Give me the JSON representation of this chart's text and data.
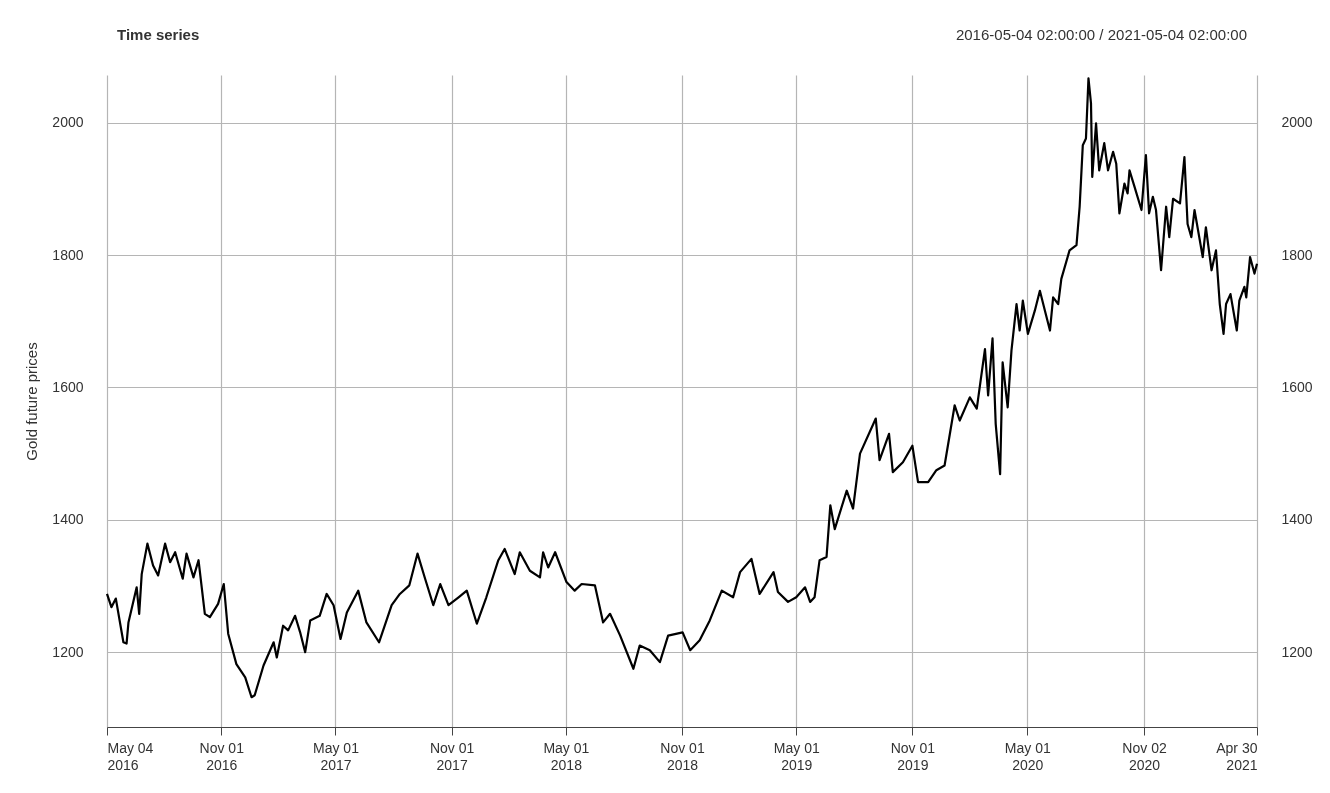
{
  "chart_data": {
    "type": "line",
    "title": "Time series",
    "subtitle": "2016-05-04 02:00:00 / 2021-05-04 02:00:00",
    "ylabel": "Gold future prices",
    "color": "#000000",
    "grid": true,
    "xlim": [
      "2016-05-04",
      "2021-04-30"
    ],
    "xticks": [
      {
        "value": "2016-05-04",
        "label": "May 04\n2016"
      },
      {
        "value": "2016-11-01",
        "label": "Nov 01\n2016"
      },
      {
        "value": "2017-05-01",
        "label": "May 01\n2017"
      },
      {
        "value": "2017-11-01",
        "label": "Nov 01\n2017"
      },
      {
        "value": "2018-05-01",
        "label": "May 01\n2018"
      },
      {
        "value": "2018-11-01",
        "label": "Nov 01\n2018"
      },
      {
        "value": "2019-05-01",
        "label": "May 01\n2019"
      },
      {
        "value": "2019-11-01",
        "label": "Nov 01\n2019"
      },
      {
        "value": "2020-05-01",
        "label": "May 01\n2020"
      },
      {
        "value": "2020-11-02",
        "label": "Nov 02\n2020"
      },
      {
        "value": "2021-04-30",
        "label": "Apr 30\n2021"
      }
    ],
    "ylim": [
      1087,
      2072
    ],
    "yticks": [
      1200,
      1400,
      1600,
      1800,
      2000
    ],
    "y2lim": [
      1087,
      2072
    ],
    "y2ticks": [
      1200,
      1400,
      1600,
      1800,
      2000
    ],
    "x": [
      "2016-05-04",
      "2016-05-11",
      "2016-05-18",
      "2016-05-30",
      "2016-06-04",
      "2016-06-07",
      "2016-06-20",
      "2016-06-24",
      "2016-06-28",
      "2016-07-07",
      "2016-07-16",
      "2016-07-24",
      "2016-08-04",
      "2016-08-12",
      "2016-08-20",
      "2016-09-01",
      "2016-09-07",
      "2016-09-18",
      "2016-09-26",
      "2016-10-06",
      "2016-10-14",
      "2016-10-27",
      "2016-11-05",
      "2016-11-12",
      "2016-11-25",
      "2016-12-09",
      "2016-12-19",
      "2016-12-24",
      "2017-01-07",
      "2017-01-23",
      "2017-01-28",
      "2017-02-07",
      "2017-02-15",
      "2017-02-26",
      "2017-03-06",
      "2017-03-14",
      "2017-03-22",
      "2017-04-06",
      "2017-04-17",
      "2017-04-28",
      "2017-05-09",
      "2017-05-19",
      "2017-06-06",
      "2017-06-19",
      "2017-07-09",
      "2017-07-29",
      "2017-08-11",
      "2017-08-26",
      "2017-09-08",
      "2017-09-20",
      "2017-10-03",
      "2017-10-14",
      "2017-10-27",
      "2017-11-12",
      "2017-11-25",
      "2017-12-11",
      "2017-12-26",
      "2018-01-14",
      "2018-01-24",
      "2018-02-09",
      "2018-02-17",
      "2018-03-05",
      "2018-03-21",
      "2018-03-26",
      "2018-04-03",
      "2018-04-14",
      "2018-05-02",
      "2018-05-15",
      "2018-05-26",
      "2018-06-16",
      "2018-06-29",
      "2018-07-10",
      "2018-07-26",
      "2018-08-16",
      "2018-08-26",
      "2018-09-11",
      "2018-09-27",
      "2018-10-10",
      "2018-11-02",
      "2018-11-14",
      "2018-11-29",
      "2018-12-15",
      "2019-01-03",
      "2019-01-21",
      "2019-02-01",
      "2019-02-19",
      "2019-03-04",
      "2019-03-26",
      "2019-04-02",
      "2019-04-18",
      "2019-05-01",
      "2019-05-15",
      "2019-05-23",
      "2019-05-30",
      "2019-06-07",
      "2019-06-18",
      "2019-06-24",
      "2019-07-01",
      "2019-07-20",
      "2019-07-30",
      "2019-08-10",
      "2019-09-04",
      "2019-09-10",
      "2019-09-25",
      "2019-10-01",
      "2019-10-17",
      "2019-11-01",
      "2019-11-10",
      "2019-11-26",
      "2019-12-09",
      "2019-12-22",
      "2020-01-07",
      "2020-01-15",
      "2020-01-31",
      "2020-02-11",
      "2020-02-24",
      "2020-02-29",
      "2020-03-07",
      "2020-03-12",
      "2020-03-19",
      "2020-03-23",
      "2020-03-31",
      "2020-04-06",
      "2020-04-14",
      "2020-04-19",
      "2020-04-24",
      "2020-05-02",
      "2020-05-13",
      "2020-05-21",
      "2020-05-29",
      "2020-06-06",
      "2020-06-11",
      "2020-06-19",
      "2020-06-24",
      "2020-07-07",
      "2020-07-18",
      "2020-07-23",
      "2020-07-28",
      "2020-08-02",
      "2020-08-06",
      "2020-08-10",
      "2020-08-12",
      "2020-08-18",
      "2020-08-23",
      "2020-08-31",
      "2020-09-06",
      "2020-09-14",
      "2020-09-19",
      "2020-09-24",
      "2020-10-02",
      "2020-10-07",
      "2020-10-10",
      "2020-10-18",
      "2020-10-29",
      "2020-11-05",
      "2020-11-10",
      "2020-11-16",
      "2020-11-21",
      "2020-11-29",
      "2020-12-07",
      "2020-12-12",
      "2020-12-18",
      "2020-12-29",
      "2021-01-05",
      "2021-01-10",
      "2021-01-16",
      "2021-01-21",
      "2021-02-03",
      "2021-02-08",
      "2021-02-17",
      "2021-02-24",
      "2021-03-02",
      "2021-03-08",
      "2021-03-12",
      "2021-03-19",
      "2021-03-29",
      "2021-04-02",
      "2021-04-10",
      "2021-04-13",
      "2021-04-19",
      "2021-04-26",
      "2021-04-30"
    ],
    "values": [
      1288,
      1268,
      1281,
      1215,
      1213,
      1245,
      1298,
      1258,
      1318,
      1364,
      1331,
      1316,
      1364,
      1336,
      1351,
      1311,
      1349,
      1313,
      1339,
      1258,
      1253,
      1273,
      1303,
      1228,
      1182,
      1162,
      1132,
      1135,
      1180,
      1215,
      1192,
      1240,
      1233,
      1255,
      1230,
      1200,
      1248,
      1255,
      1288,
      1271,
      1220,
      1260,
      1293,
      1245,
      1215,
      1271,
      1288,
      1301,
      1349,
      1311,
      1271,
      1303,
      1271,
      1283,
      1293,
      1243,
      1283,
      1339,
      1356,
      1318,
      1351,
      1323,
      1313,
      1351,
      1328,
      1351,
      1306,
      1293,
      1303,
      1301,
      1245,
      1258,
      1225,
      1175,
      1210,
      1203,
      1185,
      1225,
      1230,
      1203,
      1218,
      1248,
      1293,
      1283,
      1321,
      1341,
      1288,
      1321,
      1291,
      1276,
      1283,
      1298,
      1276,
      1283,
      1339,
      1344,
      1422,
      1386,
      1444,
      1417,
      1500,
      1553,
      1490,
      1530,
      1472,
      1487,
      1512,
      1457,
      1457,
      1475,
      1482,
      1573,
      1550,
      1585,
      1568,
      1658,
      1588,
      1674,
      1545,
      1469,
      1638,
      1570,
      1656,
      1726,
      1686,
      1731,
      1681,
      1716,
      1746,
      1716,
      1686,
      1736,
      1726,
      1764,
      1807,
      1815,
      1873,
      1966,
      1976,
      2067,
      2029,
      1918,
      1999,
      1928,
      1969,
      1928,
      1956,
      1938,
      1863,
      1908,
      1893,
      1928,
      1903,
      1868,
      1951,
      1863,
      1888,
      1868,
      1777,
      1873,
      1827,
      1885,
      1878,
      1948,
      1847,
      1827,
      1868,
      1797,
      1842,
      1777,
      1807,
      1726,
      1681,
      1726,
      1741,
      1686,
      1731,
      1752,
      1736,
      1797,
      1772,
      1787
    ]
  }
}
